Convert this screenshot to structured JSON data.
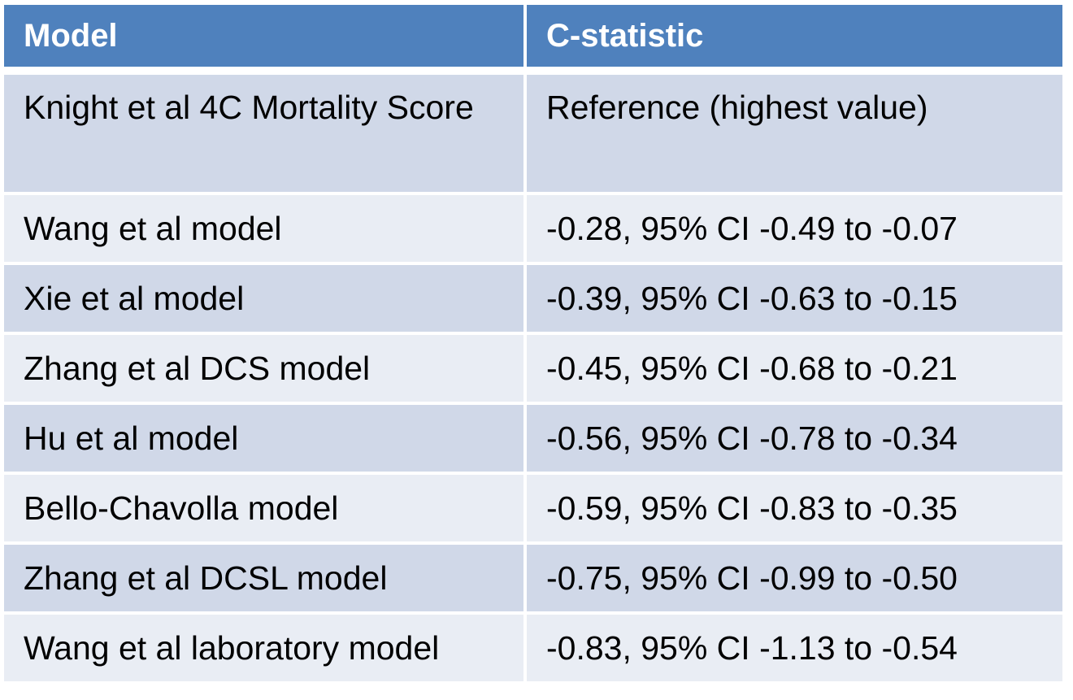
{
  "table": {
    "headers": [
      "Model",
      "C-statistic"
    ],
    "rows": [
      {
        "model": "Knight et al 4C Mortality Score",
        "c_statistic": "Reference (highest value)"
      },
      {
        "model": "Wang et al model",
        "c_statistic": "-0.28, 95% CI -0.49 to -0.07"
      },
      {
        "model": "Xie et al model",
        "c_statistic": "-0.39, 95% CI -0.63 to -0.15"
      },
      {
        "model": "Zhang et al DCS model",
        "c_statistic": "-0.45, 95% CI -0.68 to -0.21"
      },
      {
        "model": "Hu et al model",
        "c_statistic": "-0.56, 95% CI -0.78 to -0.34"
      },
      {
        "model": "Bello-Chavolla model",
        "c_statistic": "-0.59, 95% CI -0.83 to -0.35"
      },
      {
        "model": "Zhang et al DCSL model",
        "c_statistic": "-0.75, 95% CI -0.99 to -0.50"
      },
      {
        "model": "Wang et al laboratory model",
        "c_statistic": "-0.83, 95% CI -1.13 to -0.54"
      }
    ]
  },
  "colors": {
    "header_bg": "#4f81bd",
    "row_dark": "#d0d8e8",
    "row_light": "#e9edf4"
  }
}
